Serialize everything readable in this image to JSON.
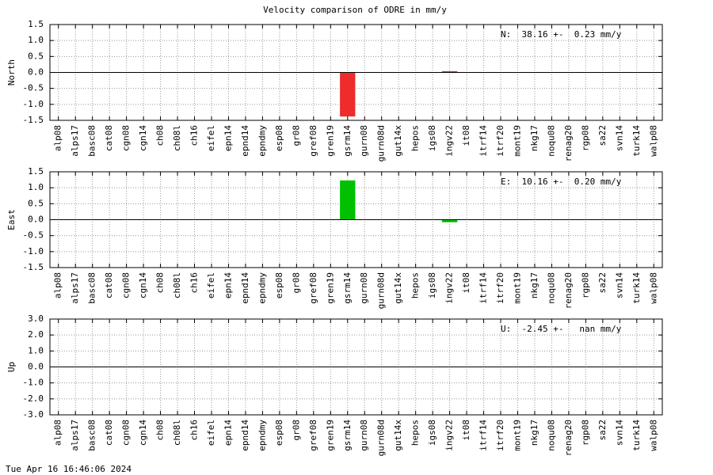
{
  "title": "Velocity comparison of ODRE in mm/y",
  "footer": "Tue Apr 16 16:46:06 2024",
  "chart_data": [
    {
      "type": "bar",
      "ylabel": "North",
      "annotation": "N:  38.16 +-  0.23 mm/y",
      "color": "#ee2c2c",
      "grid": true,
      "categories": [
        "alp08",
        "alps17",
        "basc08",
        "cat08",
        "cgn08",
        "cgn14",
        "ch08",
        "ch08l",
        "ch16",
        "eifel",
        "epn14",
        "epnd14",
        "epndmy",
        "esp08",
        "gr08",
        "gref08",
        "gren19",
        "gsrm14",
        "gurn08",
        "gurn08d",
        "gut14x",
        "hepos",
        "igs08",
        "ingv22",
        "it08",
        "itrf14",
        "itrf20",
        "mont19",
        "nkg17",
        "noqu08",
        "renag20",
        "rgp08",
        "sa22",
        "svn14",
        "turk14",
        "walp08"
      ],
      "values": [
        0,
        0,
        0,
        0,
        0,
        0,
        0,
        0,
        0,
        0,
        0,
        0,
        0,
        0,
        0,
        0,
        0,
        -1.38,
        0,
        0,
        0,
        0,
        0,
        0.04,
        0,
        0,
        0,
        0,
        0,
        0,
        0,
        0,
        0,
        0,
        0,
        0
      ],
      "ylim": [
        -1.5,
        1.5
      ],
      "yticks": [
        -1.5,
        {
          "value": -1,
          "label": "-1.0"
        },
        -0.5,
        {
          "value": 0,
          "label": "0.0"
        },
        0.5,
        {
          "value": 1,
          "label": "1.0"
        },
        1.5
      ]
    },
    {
      "type": "bar",
      "ylabel": "East",
      "annotation": "E:  10.16 +-  0.20 mm/y",
      "color": "#00c000",
      "grid": true,
      "categories": [
        "alp08",
        "alps17",
        "basc08",
        "cat08",
        "cgn08",
        "cgn14",
        "ch08",
        "ch08l",
        "ch16",
        "eifel",
        "epn14",
        "epnd14",
        "epndmy",
        "esp08",
        "gr08",
        "gref08",
        "gren19",
        "gsrm14",
        "gurn08",
        "gurn08d",
        "gut14x",
        "hepos",
        "igs08",
        "ingv22",
        "it08",
        "itrf14",
        "itrf20",
        "mont19",
        "nkg17",
        "noqu08",
        "renag20",
        "rgp08",
        "sa22",
        "svn14",
        "turk14",
        "walp08"
      ],
      "values": [
        0,
        0,
        0,
        0,
        0,
        0,
        0,
        0,
        0,
        0,
        0,
        0,
        0,
        0,
        0,
        0,
        0,
        1.23,
        0,
        0,
        0,
        0,
        0,
        -0.08,
        0,
        0,
        0,
        0,
        0,
        0,
        0,
        0,
        0,
        0,
        0,
        0
      ],
      "ylim": [
        -1.5,
        1.5
      ],
      "yticks": [
        -1.5,
        {
          "value": -1,
          "label": "-1.0"
        },
        -0.5,
        {
          "value": 0,
          "label": "0.0"
        },
        0.5,
        {
          "value": 1,
          "label": "1.0"
        },
        1.5
      ]
    },
    {
      "type": "bar",
      "ylabel": "Up",
      "annotation": "U:  -2.45 +-   nan mm/y",
      "color": "#1f4fd0",
      "grid": true,
      "categories": [
        "alp08",
        "alps17",
        "basc08",
        "cat08",
        "cgn08",
        "cgn14",
        "ch08",
        "ch08l",
        "ch16",
        "eifel",
        "epn14",
        "epnd14",
        "epndmy",
        "esp08",
        "gr08",
        "gref08",
        "gren19",
        "gsrm14",
        "gurn08",
        "gurn08d",
        "gut14x",
        "hepos",
        "igs08",
        "ingv22",
        "it08",
        "itrf14",
        "itrf20",
        "mont19",
        "nkg17",
        "noqu08",
        "renag20",
        "rgp08",
        "sa22",
        "svn14",
        "turk14",
        "walp08"
      ],
      "values": [
        0,
        0,
        0,
        0,
        0,
        0,
        0,
        0,
        0,
        0,
        0,
        0,
        0,
        0,
        0,
        0,
        0,
        0,
        0,
        0,
        0,
        0,
        0,
        0,
        0,
        0,
        0,
        0,
        0,
        0,
        0,
        0,
        0,
        0,
        0,
        0
      ],
      "ylim": [
        -3,
        3
      ],
      "yticks": [
        {
          "value": -3,
          "label": "-3.0"
        },
        {
          "value": -2,
          "label": "-2.0"
        },
        {
          "value": -1,
          "label": "-1.0"
        },
        {
          "value": 0,
          "label": "0.0"
        },
        {
          "value": 1,
          "label": "1.0"
        },
        {
          "value": 2,
          "label": "2.0"
        },
        {
          "value": 3,
          "label": "3.0"
        }
      ]
    }
  ]
}
